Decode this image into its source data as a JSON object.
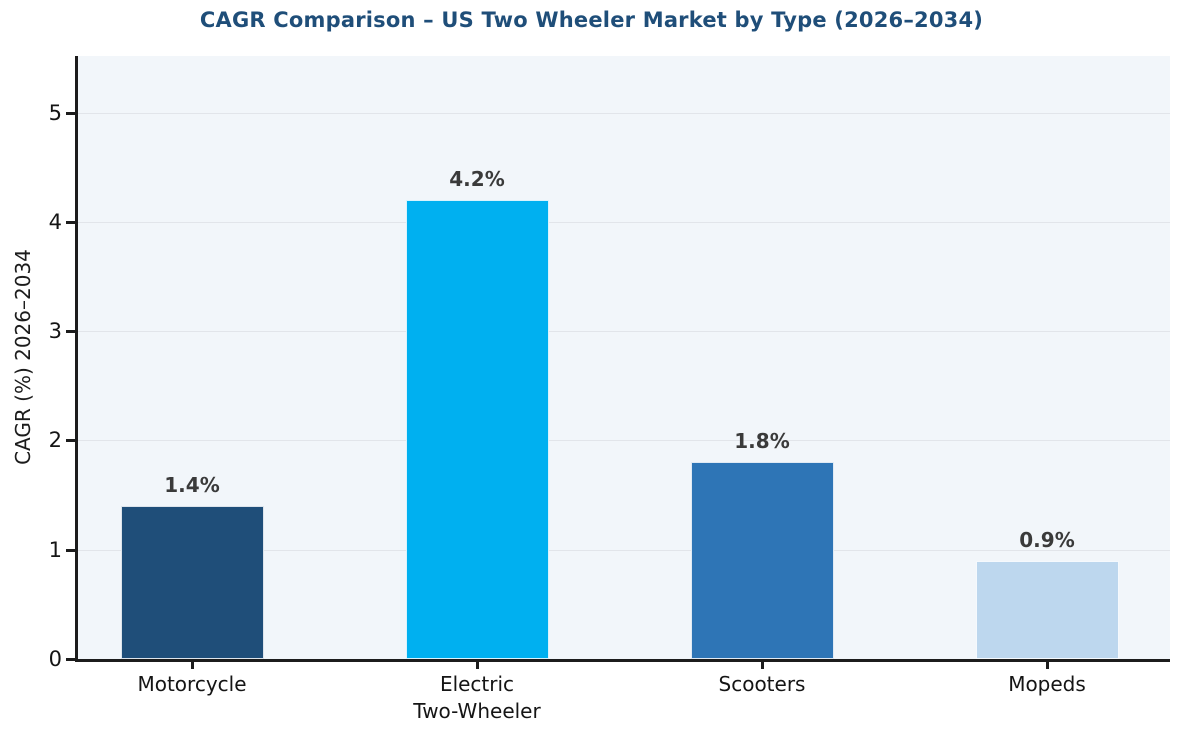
{
  "chart_data": {
    "type": "bar",
    "title": "CAGR Comparison – US Two Wheeler Market by Type (2026–2034)",
    "categories": [
      "Motorcycle",
      "Electric\nTwo-Wheeler",
      "Scooters",
      "Mopeds"
    ],
    "values": [
      1.4,
      4.2,
      1.8,
      0.9
    ],
    "value_labels": [
      "1.4%",
      "4.2%",
      "1.8%",
      "0.9%"
    ],
    "bar_colors": [
      "#1f4e79",
      "#00b0f0",
      "#2e75b6",
      "#bdd7ee"
    ],
    "xlabel": "",
    "ylabel": "CAGR (%) 2026–2034",
    "yticks": [
      0,
      1,
      2,
      3,
      4,
      5
    ],
    "ylim": [
      0,
      5.52
    ],
    "grid": "horizontal-only",
    "legend": "none",
    "colors": {
      "title": "#1f4e79",
      "plot_background": "#f2f6fa",
      "gridline": "#e2e5ea",
      "axis_spine": "#1c1c1c",
      "tick_label": "#151515",
      "value_label": "#3a3a3a"
    }
  }
}
